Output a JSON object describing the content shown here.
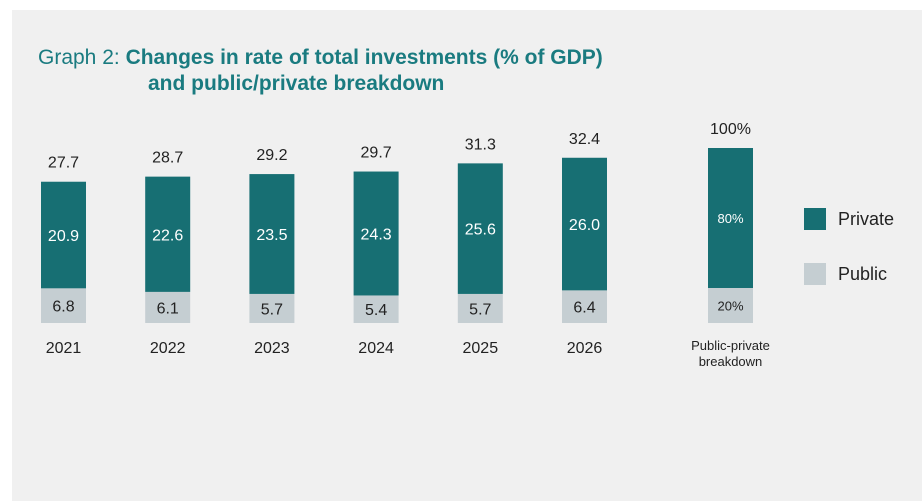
{
  "title_prefix": "Graph 2: ",
  "title_line1": "Changes in rate of total investments (% of GDP)",
  "title_line2": "and public/private breakdown",
  "colors": {
    "private": "#176f73",
    "public": "#c5ced2",
    "title_accent": "#1a7b80",
    "text": "#222222",
    "value_on_dark": "#ffffff"
  },
  "chart_data": {
    "type": "bar",
    "stacked": true,
    "categories": [
      "2021",
      "2022",
      "2023",
      "2024",
      "2025",
      "2026"
    ],
    "series": [
      {
        "name": "Private",
        "values": [
          20.9,
          22.6,
          23.5,
          24.3,
          25.6,
          26.0
        ]
      },
      {
        "name": "Public",
        "values": [
          6.8,
          6.1,
          5.7,
          5.4,
          5.7,
          6.4
        ]
      }
    ],
    "totals": [
      "27.7",
      "28.7",
      "29.2",
      "29.7",
      "31.3",
      "32.4"
    ],
    "private_labels": [
      "20.9",
      "22.6",
      "23.5",
      "24.3",
      "25.6",
      "26.0"
    ],
    "public_labels": [
      "6.8",
      "6.1",
      "5.7",
      "5.4",
      "5.7",
      "6.4"
    ],
    "breakdown": {
      "category_lines": [
        "Public-private",
        "breakdown"
      ],
      "total_label": "100%",
      "private_share": 80,
      "public_share": 20,
      "private_label": "80%",
      "public_label": "20%"
    },
    "legend": {
      "position": "right",
      "entries": [
        "Private",
        "Public"
      ]
    }
  }
}
